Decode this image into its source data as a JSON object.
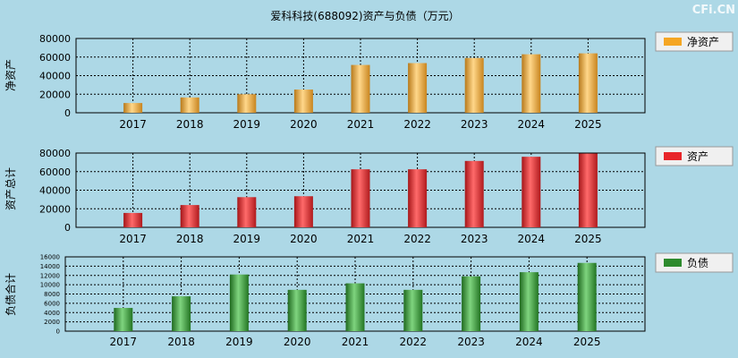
{
  "title": "爱科科技(688092)资产与负债（万元）",
  "watermark": "CFi.CN",
  "chart_data": [
    {
      "type": "bar",
      "ylabel": "净资产",
      "legend": "净资产",
      "color": "#f5a623",
      "categories": [
        "2017",
        "2018",
        "2019",
        "2020",
        "2021",
        "2022",
        "2023",
        "2024",
        "2025"
      ],
      "values": [
        10500,
        16500,
        20000,
        25000,
        51500,
        53500,
        59000,
        63000,
        64000
      ],
      "ylim": [
        0,
        80000
      ],
      "yticks": [
        0,
        20000,
        40000,
        60000,
        80000
      ],
      "ytick_labels": [
        "0",
        "20000",
        "40000",
        "60000",
        "80000"
      ]
    },
    {
      "type": "bar",
      "ylabel": "资产总计",
      "legend": "资产",
      "color": "#e8262a",
      "categories": [
        "2017",
        "2018",
        "2019",
        "2020",
        "2021",
        "2022",
        "2023",
        "2024",
        "2025"
      ],
      "values": [
        15500,
        24000,
        32500,
        33500,
        62500,
        62500,
        71500,
        76000,
        79500
      ],
      "ylim": [
        0,
        80000
      ],
      "yticks": [
        0,
        20000,
        40000,
        60000,
        80000
      ],
      "ytick_labels": [
        "0",
        "20000",
        "40000",
        "60000",
        "80000"
      ]
    },
    {
      "type": "bar",
      "ylabel": "负债合计",
      "legend": "负债",
      "color": "#2e8b2e",
      "categories": [
        "2017",
        "2018",
        "2019",
        "2020",
        "2021",
        "2022",
        "2023",
        "2024",
        "2025"
      ],
      "values": [
        5000,
        7500,
        12200,
        8900,
        10300,
        8900,
        11800,
        12700,
        14700
      ],
      "ylim": [
        0,
        16000
      ],
      "yticks": [
        0,
        2000,
        4000,
        6000,
        8000,
        10000,
        12000,
        14000,
        16000
      ],
      "ytick_labels": [
        "0",
        "2000",
        "4000",
        "6000",
        "8000",
        "10000",
        "12000",
        "14000",
        "16000"
      ]
    }
  ]
}
